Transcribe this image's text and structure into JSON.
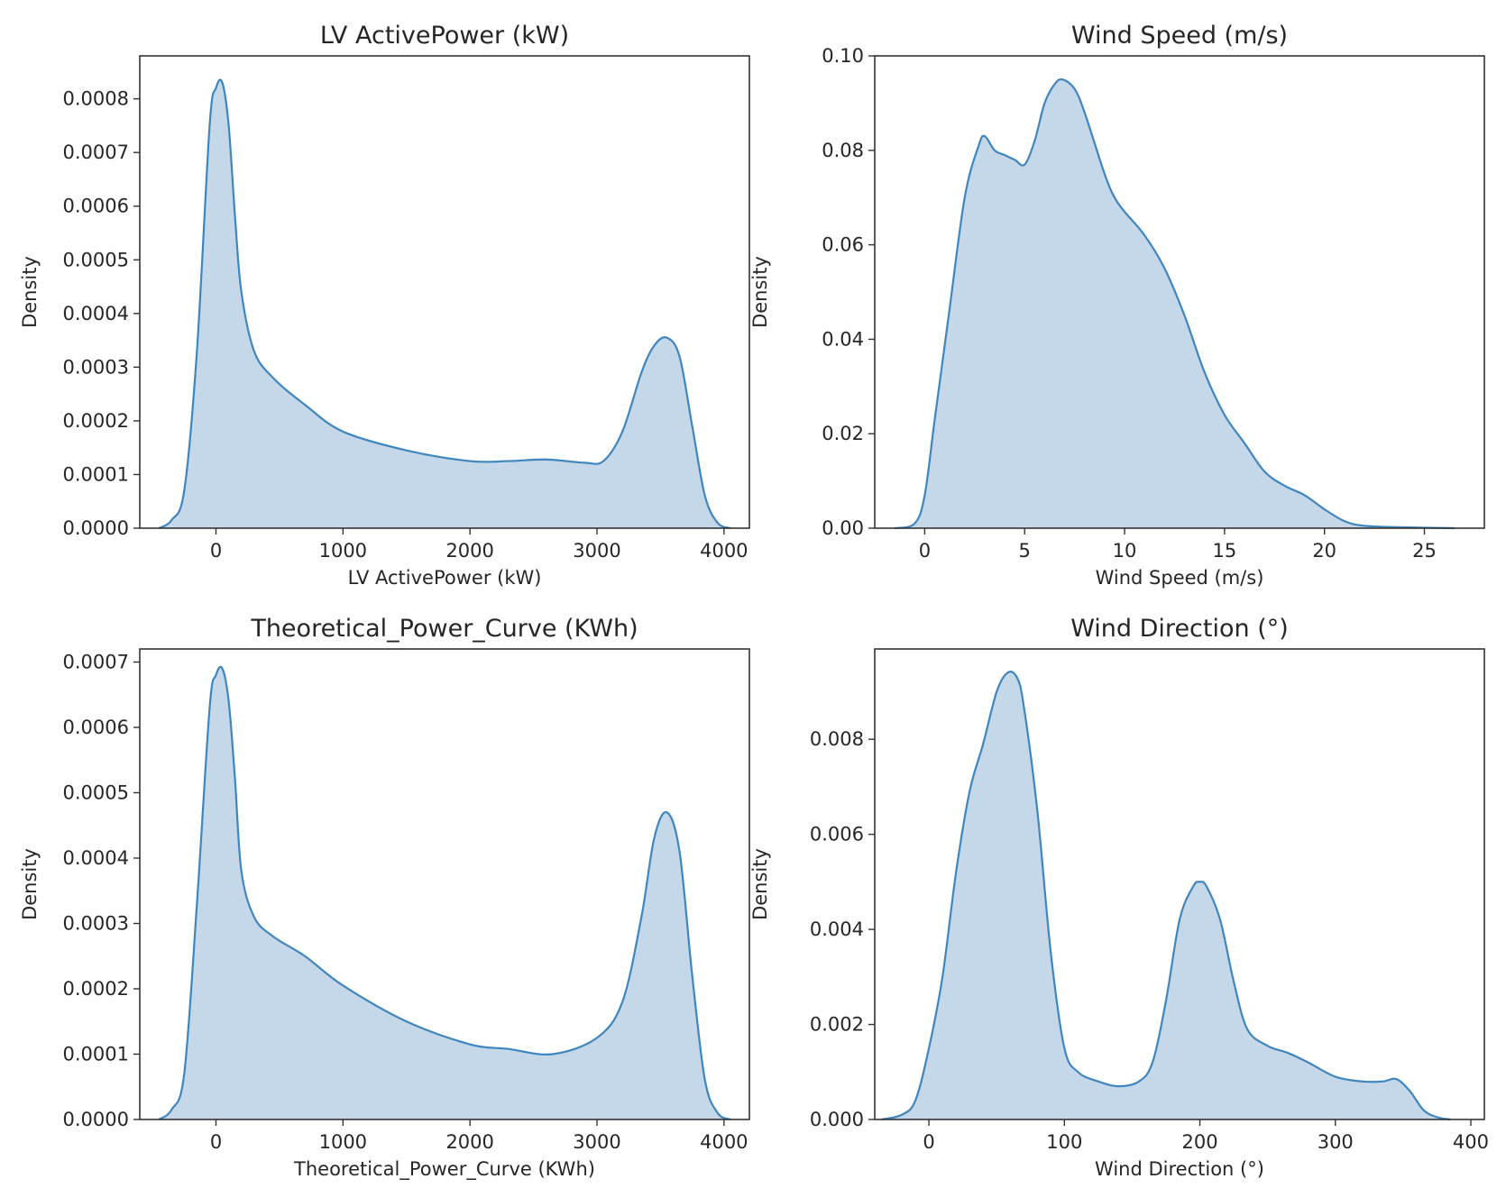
{
  "colors": {
    "line": "#3f86bf",
    "fill": "#c4d8ea",
    "text": "#262626",
    "frame": "#333333"
  },
  "chart_data": [
    {
      "type": "area",
      "title": "LV ActivePower (kW)",
      "xlabel": "LV ActivePower (kW)",
      "ylabel": "Density",
      "xlim": [
        -600,
        4200
      ],
      "ylim": [
        0,
        0.00088
      ],
      "xticks": [
        0,
        1000,
        2000,
        3000,
        4000
      ],
      "xtick_labels": [
        "0",
        "1000",
        "2000",
        "3000",
        "4000"
      ],
      "yticks": [
        0,
        0.0001,
        0.0002,
        0.0003,
        0.0004,
        0.0005,
        0.0006,
        0.0007,
        0.0008
      ],
      "ytick_labels": [
        "0.0000",
        "0.0001",
        "0.0002",
        "0.0003",
        "0.0004",
        "0.0005",
        "0.0006",
        "0.0007",
        "0.0008"
      ],
      "x": [
        -450,
        -350,
        -250,
        -150,
        -50,
        0,
        50,
        100,
        150,
        200,
        300,
        450,
        700,
        1000,
        1500,
        2000,
        2300,
        2600,
        2900,
        3050,
        3200,
        3350,
        3450,
        3550,
        3650,
        3750,
        3850,
        3950,
        4050
      ],
      "y": [
        0,
        1.5e-05,
        7e-05,
        0.00033,
        0.00075,
        0.00082,
        0.00083,
        0.00075,
        0.00058,
        0.00044,
        0.00033,
        0.00028,
        0.00023,
        0.00018,
        0.000145,
        0.000125,
        0.000125,
        0.000128,
        0.000122,
        0.000125,
        0.00018,
        0.00029,
        0.00034,
        0.000355,
        0.00032,
        0.00019,
        6e-05,
        1e-05,
        0
      ]
    },
    {
      "type": "area",
      "title": "Wind Speed (m/s)",
      "xlabel": "Wind Speed (m/s)",
      "ylabel": "Density",
      "xlim": [
        -2.5,
        28
      ],
      "ylim": [
        0,
        0.1
      ],
      "xticks": [
        0,
        5,
        10,
        15,
        20,
        25
      ],
      "xtick_labels": [
        "0",
        "5",
        "10",
        "15",
        "20",
        "25"
      ],
      "yticks": [
        0,
        0.02,
        0.04,
        0.06,
        0.08,
        0.1
      ],
      "ytick_labels": [
        "0.00",
        "0.02",
        "0.04",
        "0.06",
        "0.08",
        "0.10"
      ],
      "x": [
        -1.5,
        -0.5,
        0,
        0.5,
        1.2,
        2,
        2.7,
        3,
        3.5,
        4,
        4.5,
        5,
        5.5,
        6,
        6.5,
        6.9,
        7.5,
        8,
        9,
        9.5,
        10,
        11,
        12,
        13,
        14,
        15,
        16,
        17,
        18,
        19,
        20,
        21,
        22,
        24,
        26.5
      ],
      "y": [
        0,
        0.001,
        0.007,
        0.023,
        0.045,
        0.07,
        0.081,
        0.083,
        0.08,
        0.079,
        0.078,
        0.077,
        0.082,
        0.09,
        0.094,
        0.095,
        0.093,
        0.088,
        0.075,
        0.07,
        0.067,
        0.062,
        0.055,
        0.045,
        0.033,
        0.024,
        0.018,
        0.012,
        0.009,
        0.007,
        0.004,
        0.0015,
        0.0005,
        0.0002,
        0
      ]
    },
    {
      "type": "area",
      "title": "Theoretical_Power_Curve (KWh)",
      "xlabel": "Theoretical_Power_Curve (KWh)",
      "ylabel": "Density",
      "xlim": [
        -600,
        4200
      ],
      "ylim": [
        0,
        0.00072
      ],
      "xticks": [
        0,
        1000,
        2000,
        3000,
        4000
      ],
      "xtick_labels": [
        "0",
        "1000",
        "2000",
        "3000",
        "4000"
      ],
      "yticks": [
        0,
        0.0001,
        0.0002,
        0.0003,
        0.0004,
        0.0005,
        0.0006,
        0.0007
      ],
      "ytick_labels": [
        "0.0000",
        "0.0001",
        "0.0002",
        "0.0003",
        "0.0004",
        "0.0005",
        "0.0006",
        "0.0007"
      ],
      "x": [
        -450,
        -350,
        -250,
        -150,
        -50,
        0,
        50,
        100,
        150,
        200,
        300,
        450,
        700,
        1000,
        1500,
        2000,
        2300,
        2650,
        3000,
        3200,
        3350,
        3450,
        3550,
        3650,
        3750,
        3850,
        3950,
        4050
      ],
      "y": [
        0,
        1.5e-05,
        7e-05,
        0.00033,
        0.00063,
        0.00068,
        0.00069,
        0.00064,
        0.00052,
        0.00038,
        0.00031,
        0.00028,
        0.00025,
        0.000205,
        0.00015,
        0.000115,
        0.000108,
        0.0001,
        0.000125,
        0.00018,
        0.00031,
        0.00043,
        0.00047,
        0.00041,
        0.00022,
        6e-05,
        1e-05,
        0
      ]
    },
    {
      "type": "area",
      "title": "Wind Direction (°)",
      "xlabel": "Wind Direction (°)",
      "ylabel": "Density",
      "xlim": [
        -40,
        410
      ],
      "ylim": [
        0,
        0.0099
      ],
      "xticks": [
        0,
        100,
        200,
        300,
        400
      ],
      "xtick_labels": [
        "0",
        "100",
        "200",
        "300",
        "400"
      ],
      "yticks": [
        0,
        0.002,
        0.004,
        0.006,
        0.008
      ],
      "ytick_labels": [
        "0.000",
        "0.002",
        "0.004",
        "0.006",
        "0.008"
      ],
      "x": [
        -35,
        -20,
        -10,
        0,
        10,
        20,
        30,
        40,
        50,
        58,
        65,
        70,
        80,
        90,
        100,
        110,
        125,
        140,
        155,
        165,
        175,
        185,
        195,
        200,
        205,
        215,
        225,
        235,
        250,
        265,
        280,
        300,
        320,
        335,
        345,
        355,
        365,
        375,
        385
      ],
      "y": [
        0,
        0.0001,
        0.0004,
        0.0015,
        0.003,
        0.0052,
        0.0069,
        0.0079,
        0.009,
        0.0094,
        0.0093,
        0.0087,
        0.0065,
        0.0035,
        0.0015,
        0.001,
        0.0008,
        0.0007,
        0.0008,
        0.0012,
        0.0025,
        0.0042,
        0.0049,
        0.005,
        0.0049,
        0.0042,
        0.0029,
        0.0019,
        0.00155,
        0.0014,
        0.0012,
        0.0009,
        0.0008,
        0.0008,
        0.00085,
        0.0006,
        0.0002,
        5e-05,
        0
      ]
    }
  ]
}
